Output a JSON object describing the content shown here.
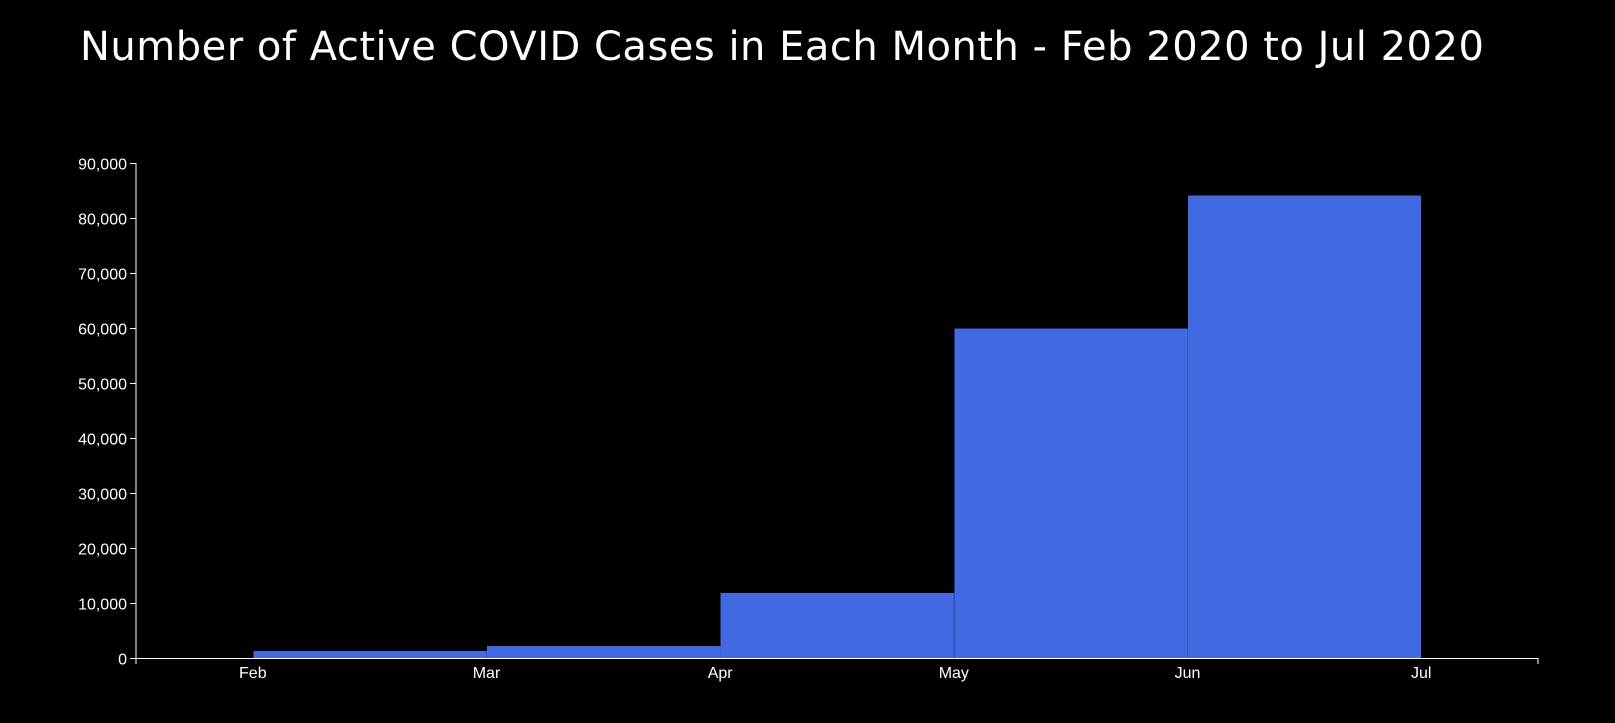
{
  "chart_data": {
    "type": "bar",
    "title": "Number of Active COVID Cases in Each Month - Feb 2020 to Jul 2020",
    "categories": [
      "Feb",
      "Mar",
      "Apr",
      "May",
      "Jun",
      "Jul"
    ],
    "values": [
      0,
      1300,
      2200,
      11800,
      59900,
      84100
    ],
    "ylim": [
      0,
      90000
    ],
    "yticks": [
      0,
      10000,
      20000,
      30000,
      40000,
      50000,
      60000,
      70000,
      80000,
      90000
    ],
    "ytick_labels": [
      "0",
      "10,000",
      "20,000",
      "30,000",
      "40,000",
      "50,000",
      "60,000",
      "70,000",
      "80,000",
      "90,000"
    ],
    "xlabel": "",
    "ylabel": "",
    "grid": false,
    "bar_color": "#4169e1",
    "axis_color": "#ffffff",
    "background": "#000000"
  }
}
